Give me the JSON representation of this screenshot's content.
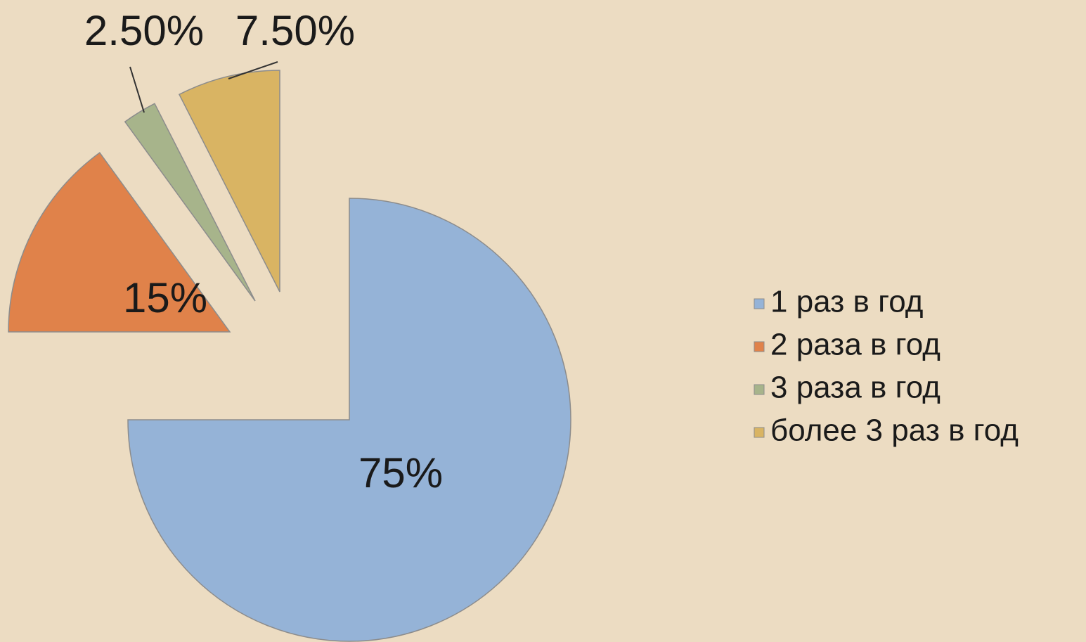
{
  "chart_data": {
    "type": "pie",
    "categories": [
      "1 раз в год",
      "2 раза в год",
      "3 раза в год",
      "более 3 раз в год"
    ],
    "values": [
      75,
      15,
      2.5,
      7.5
    ],
    "value_labels": [
      "75%",
      "15%",
      "2.50%",
      "7.50%"
    ],
    "colors": [
      "#95b3d7",
      "#e0824a",
      "#a7b48b",
      "#d9b463"
    ],
    "legend": "right"
  }
}
